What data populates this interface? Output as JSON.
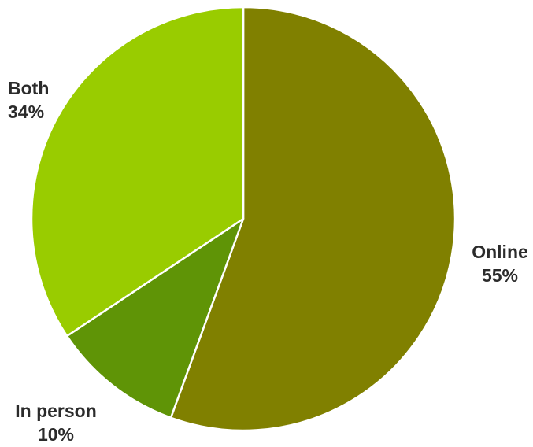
{
  "chart_data": {
    "type": "pie",
    "slices": [
      {
        "label": "Online",
        "pct_text": "55%",
        "value": 55,
        "color": "#808000"
      },
      {
        "label": "In person",
        "pct_text": "10%",
        "value": 10,
        "color": "#5f9406"
      },
      {
        "label": "Both",
        "pct_text": "34%",
        "value": 34,
        "color": "#99cc00"
      }
    ],
    "start_angle": "12 o'clock",
    "direction": "clockwise",
    "legend": "none",
    "title": ""
  }
}
